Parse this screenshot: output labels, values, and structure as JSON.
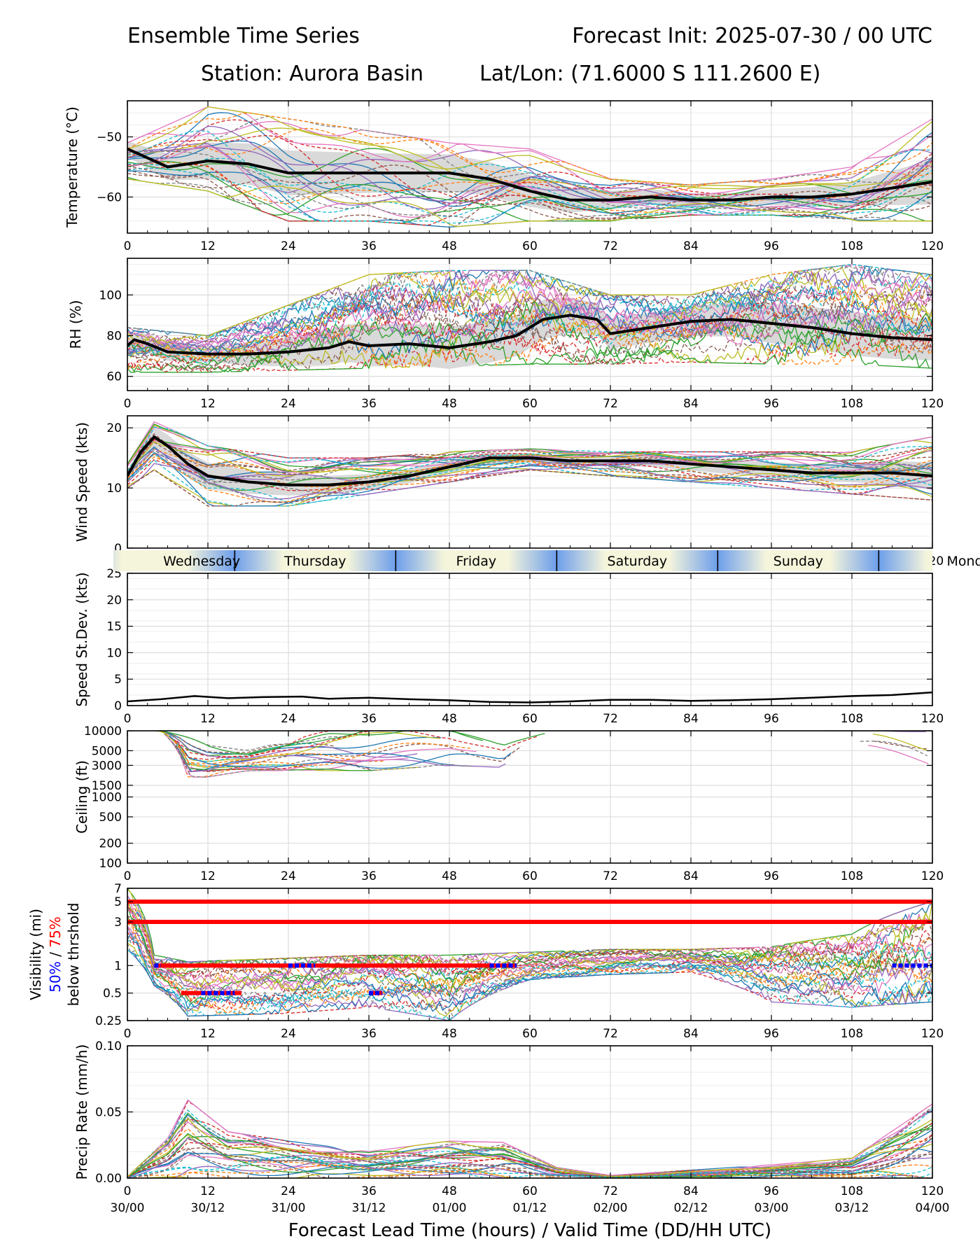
{
  "header": {
    "title_left": "Ensemble Time Series",
    "title_right": "Forecast Init: 2025-07-30 / 00 UTC",
    "station": "Station: Aurora Basin",
    "latlon": "Lat/Lon: (71.6000 S 111.2600 E)"
  },
  "x_axis": {
    "label": "Forecast Lead Time (hours) / Valid Time (DD/HH UTC)",
    "lead_ticks": [
      "0",
      "12",
      "24",
      "36",
      "48",
      "60",
      "72",
      "84",
      "96",
      "108",
      "120"
    ],
    "valid_ticks": [
      "30/00",
      "30/12",
      "31/00",
      "31/12",
      "01/00",
      "01/12",
      "02/00",
      "02/12",
      "03/00",
      "03/12",
      "04/00"
    ]
  },
  "day_strip": [
    "Wednesday",
    "Thursday",
    "Friday",
    "Saturday",
    "Sunday",
    "Monday"
  ],
  "style": {
    "members": [
      "#1f77b4",
      "#ff7f0e",
      "#2ca02c",
      "#d62728",
      "#9467bd",
      "#8c564b",
      "#e377c2",
      "#7f7f7f",
      "#bcbd22",
      "#17becf"
    ],
    "mean": "#000000",
    "spread": "#d9d9d9",
    "threshold": "#ff0000",
    "p50_marker": "#0000ff",
    "day_strip_light": "#f5f5dc",
    "day_strip_dark": "#6d9eeb"
  },
  "chart_data": [
    {
      "id": "temperature",
      "type": "line",
      "title": "",
      "ylabel": "Temperature (°C)",
      "xlim": [
        0,
        120
      ],
      "ylim": [
        -66,
        -44
      ],
      "yticks": [
        "-50",
        "-60"
      ],
      "ytick_values": [
        -50,
        -60
      ],
      "grid": true,
      "members": 30,
      "member_spread": [
        {
          "x": 0,
          "min": -57,
          "max": -51
        },
        {
          "x": 12,
          "min": -59,
          "max": -45
        },
        {
          "x": 24,
          "min": -64,
          "max": -47
        },
        {
          "x": 36,
          "min": -64,
          "max": -49
        },
        {
          "x": 48,
          "min": -65,
          "max": -51
        },
        {
          "x": 60,
          "min": -64,
          "max": -52
        },
        {
          "x": 72,
          "min": -64,
          "max": -57
        },
        {
          "x": 84,
          "min": -63,
          "max": -58
        },
        {
          "x": 96,
          "min": -63,
          "max": -57
        },
        {
          "x": 108,
          "min": -64,
          "max": -55
        },
        {
          "x": 120,
          "min": -64,
          "max": -47
        }
      ],
      "series": [
        {
          "x": [
            0,
            6,
            12,
            18,
            24,
            30,
            36,
            42,
            48,
            54,
            60,
            66,
            72,
            78,
            84,
            90,
            96,
            102,
            108,
            114,
            120
          ],
          "values": [
            -52,
            -55,
            -54,
            -54.5,
            -56,
            -56,
            -56,
            -56,
            -56,
            -57,
            -59,
            -60.5,
            -60.5,
            -60,
            -60.5,
            -60.5,
            -60,
            -60,
            -59.5,
            -58.5,
            -57.5
          ]
        }
      ]
    },
    {
      "id": "rh",
      "type": "line",
      "title": "",
      "ylabel": "RH (%)",
      "xlim": [
        0,
        120
      ],
      "ylim": [
        53,
        118
      ],
      "yticks": [
        "60",
        "80",
        "100"
      ],
      "ytick_values": [
        60,
        80,
        100
      ],
      "grid": true,
      "members": 30,
      "member_spread": [
        {
          "x": 0,
          "min": 62,
          "max": 84
        },
        {
          "x": 12,
          "min": 62,
          "max": 80
        },
        {
          "x": 24,
          "min": 63,
          "max": 95
        },
        {
          "x": 36,
          "min": 64,
          "max": 110
        },
        {
          "x": 48,
          "min": 65,
          "max": 112
        },
        {
          "x": 60,
          "min": 66,
          "max": 112
        },
        {
          "x": 72,
          "min": 66,
          "max": 100
        },
        {
          "x": 84,
          "min": 67,
          "max": 100
        },
        {
          "x": 96,
          "min": 66,
          "max": 110
        },
        {
          "x": 108,
          "min": 66,
          "max": 115
        },
        {
          "x": 120,
          "min": 64,
          "max": 110
        }
      ],
      "series": [
        {
          "x": [
            0,
            1,
            3,
            6,
            12,
            18,
            24,
            30,
            33,
            36,
            42,
            48,
            54,
            58,
            62,
            66,
            70,
            72,
            78,
            84,
            90,
            96,
            102,
            108,
            114,
            120
          ],
          "values": [
            75,
            78,
            76,
            72,
            71,
            71,
            72,
            74,
            77,
            75,
            76,
            74,
            77,
            80,
            88,
            90,
            88,
            81,
            84,
            87,
            88,
            86,
            84,
            81,
            79,
            78
          ]
        }
      ]
    },
    {
      "id": "wind_speed",
      "type": "line",
      "title": "",
      "ylabel": "Wind Speed (kts)",
      "xlim": [
        0,
        120
      ],
      "ylim": [
        0,
        22
      ],
      "yticks": [
        "0",
        "10",
        "20"
      ],
      "ytick_values": [
        0,
        10,
        20
      ],
      "grid": true,
      "members": 30,
      "member_spread": [
        {
          "x": 0,
          "min": 10,
          "max": 14
        },
        {
          "x": 4,
          "min": 13,
          "max": 21
        },
        {
          "x": 12,
          "min": 7,
          "max": 17
        },
        {
          "x": 24,
          "min": 7,
          "max": 15
        },
        {
          "x": 36,
          "min": 9,
          "max": 15
        },
        {
          "x": 48,
          "min": 11,
          "max": 16
        },
        {
          "x": 60,
          "min": 13,
          "max": 16.5
        },
        {
          "x": 72,
          "min": 12,
          "max": 16
        },
        {
          "x": 84,
          "min": 11,
          "max": 16
        },
        {
          "x": 96,
          "min": 10,
          "max": 16
        },
        {
          "x": 108,
          "min": 9,
          "max": 16
        },
        {
          "x": 120,
          "min": 8,
          "max": 18.5
        }
      ],
      "series": [
        {
          "x": [
            0,
            2,
            4,
            6,
            9,
            12,
            18,
            24,
            30,
            36,
            42,
            48,
            54,
            60,
            66,
            72,
            78,
            84,
            90,
            96,
            102,
            108,
            114,
            120
          ],
          "values": [
            12,
            16,
            18.5,
            17,
            14,
            12,
            11,
            10.5,
            10.5,
            11,
            12,
            13.5,
            15,
            15,
            14.5,
            14.5,
            14.5,
            14,
            13.5,
            13,
            12.5,
            12.5,
            12.5,
            12
          ]
        }
      ]
    },
    {
      "id": "speed_stdev",
      "type": "line",
      "title": "",
      "ylabel": "Speed St.Dev. (kts)",
      "xlim": [
        0,
        120
      ],
      "ylim": [
        0,
        25
      ],
      "yticks": [
        "0",
        "5",
        "10",
        "15",
        "20",
        "25"
      ],
      "ytick_values": [
        0,
        5,
        10,
        15,
        20,
        25
      ],
      "grid": true,
      "series": [
        {
          "x": [
            0,
            5,
            10,
            15,
            20,
            26,
            30,
            36,
            42,
            48,
            54,
            60,
            66,
            72,
            78,
            84,
            90,
            96,
            102,
            108,
            114,
            120
          ],
          "values": [
            0.8,
            1.2,
            1.8,
            1.4,
            1.6,
            1.7,
            1.3,
            1.5,
            1.2,
            1.0,
            0.7,
            0.6,
            0.8,
            1.1,
            1.1,
            0.9,
            1.0,
            1.2,
            1.5,
            1.8,
            2.0,
            2.5
          ]
        }
      ]
    },
    {
      "id": "ceiling",
      "type": "line",
      "title": "",
      "ylabel": "Ceiling (ft)",
      "yscale": "log",
      "xlim": [
        0,
        120
      ],
      "ylim": [
        100,
        10000
      ],
      "yticks": [
        "100",
        "200",
        "500",
        "1000",
        "1500",
        "3000",
        "5000",
        "10000"
      ],
      "ytick_values": [
        100,
        200,
        500,
        1000,
        1500,
        3000,
        5000,
        10000
      ],
      "grid": true,
      "members": 30,
      "member_spread": [
        {
          "x": 5,
          "min": 10000,
          "max": 10000
        },
        {
          "x": 9,
          "min": 2000,
          "max": 8000
        },
        {
          "x": 12,
          "min": 2000,
          "max": 6000
        },
        {
          "x": 18,
          "min": 2500,
          "max": 5000
        },
        {
          "x": 24,
          "min": 2500,
          "max": 7000
        },
        {
          "x": 30,
          "min": 2500,
          "max": 10000
        },
        {
          "x": 36,
          "min": 2500,
          "max": 10000
        },
        {
          "x": 48,
          "min": 3000,
          "max": 10000
        },
        {
          "x": 56,
          "min": 2800,
          "max": 6000
        },
        {
          "x": 64,
          "min": 10000,
          "max": 10000
        },
        {
          "x": 108,
          "min": 5000,
          "max": 10000
        },
        {
          "x": 120,
          "min": 2500,
          "max": 10000
        }
      ],
      "series": []
    },
    {
      "id": "visibility",
      "type": "line",
      "title": "",
      "ylabel": "Visibility (mi)",
      "ylabel_lines": [
        "Visibility (mi)",
        "50%",
        "/",
        "75%",
        "below thrshold"
      ],
      "yscale": "log",
      "xlim": [
        0,
        120
      ],
      "ylim": [
        0.25,
        7
      ],
      "yticks": [
        "0.25",
        "0.5",
        "1",
        "3",
        "5",
        "7"
      ],
      "ytick_values": [
        0.25,
        0.5,
        1,
        3,
        5,
        7
      ],
      "grid": true,
      "members": 30,
      "thresholds": [
        {
          "value": 5,
          "x0": 0,
          "x1": 120
        },
        {
          "value": 3,
          "x0": 0,
          "x1": 120
        },
        {
          "value": 1,
          "x0": 4,
          "x1": 58
        },
        {
          "value": 0.5,
          "x0": 8,
          "x1": 17
        },
        {
          "value": 0.5,
          "x0": 36,
          "x1": 38
        }
      ],
      "below_50pct": [
        {
          "value": 1,
          "x0": 4,
          "x1": 5
        },
        {
          "value": 1,
          "x0": 24,
          "x1": 28
        },
        {
          "value": 1,
          "x0": 54,
          "x1": 58
        },
        {
          "value": 1,
          "x0": 114,
          "x1": 120
        },
        {
          "value": 0.5,
          "x0": 11,
          "x1": 16
        },
        {
          "value": 0.5,
          "x0": 36,
          "x1": 38
        }
      ],
      "member_spread": [
        {
          "x": 0,
          "min": 1.5,
          "max": 7
        },
        {
          "x": 4,
          "min": 0.6,
          "max": 1.3
        },
        {
          "x": 9,
          "min": 0.28,
          "max": 1.1
        },
        {
          "x": 24,
          "min": 0.3,
          "max": 1.2
        },
        {
          "x": 36,
          "min": 0.35,
          "max": 1.3
        },
        {
          "x": 48,
          "min": 0.25,
          "max": 1.3
        },
        {
          "x": 60,
          "min": 0.7,
          "max": 1.4
        },
        {
          "x": 72,
          "min": 0.8,
          "max": 1.5
        },
        {
          "x": 84,
          "min": 0.85,
          "max": 1.5
        },
        {
          "x": 96,
          "min": 0.4,
          "max": 1.6
        },
        {
          "x": 108,
          "min": 0.35,
          "max": 2.2
        },
        {
          "x": 120,
          "min": 0.4,
          "max": 5
        }
      ],
      "series": []
    },
    {
      "id": "precip_rate",
      "type": "line",
      "title": "",
      "ylabel": "Precip Rate (mm/h)",
      "xlim": [
        0,
        120
      ],
      "ylim": [
        0,
        0.1
      ],
      "yticks": [
        "0.00",
        "0.05",
        "0.10"
      ],
      "ytick_values": [
        0,
        0.05,
        0.1
      ],
      "grid": true,
      "members": 30,
      "member_spread": [
        {
          "x": 0,
          "min": 0,
          "max": 0.001
        },
        {
          "x": 6,
          "min": 0,
          "max": 0.03
        },
        {
          "x": 9,
          "min": 0,
          "max": 0.059
        },
        {
          "x": 15,
          "min": 0,
          "max": 0.035
        },
        {
          "x": 24,
          "min": 0,
          "max": 0.028
        },
        {
          "x": 36,
          "min": 0,
          "max": 0.02
        },
        {
          "x": 48,
          "min": 0,
          "max": 0.028
        },
        {
          "x": 56,
          "min": 0,
          "max": 0.027
        },
        {
          "x": 64,
          "min": 0,
          "max": 0.008
        },
        {
          "x": 72,
          "min": 0,
          "max": 0.002
        },
        {
          "x": 96,
          "min": 0,
          "max": 0.01
        },
        {
          "x": 108,
          "min": 0,
          "max": 0.015
        },
        {
          "x": 120,
          "min": 0,
          "max": 0.056
        }
      ],
      "series": []
    }
  ]
}
